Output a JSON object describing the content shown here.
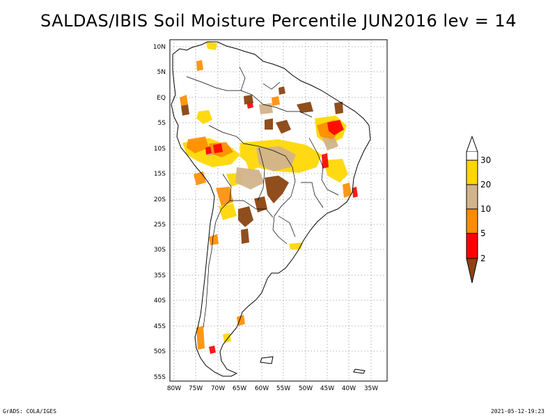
{
  "title": "SALDAS/IBIS Soil Moisture Percentile JUN2016 lev = 14",
  "footer_left": "GrADS: COLA/IGES",
  "footer_right": "2021-05-12-19:23",
  "lat_labels": [
    "10N",
    "5N",
    "EQ",
    "5S",
    "10S",
    "15S",
    "20S",
    "25S",
    "30S",
    "35S",
    "40S",
    "45S",
    "50S",
    "55S"
  ],
  "lon_labels": [
    "80W",
    "75W",
    "70W",
    "65W",
    "60W",
    "55W",
    "50W",
    "45W",
    "40W",
    "35W"
  ],
  "colorbar": {
    "levels": [
      "30",
      "20",
      "10",
      "5",
      "2"
    ],
    "colors": {
      "above30": "#ffffff",
      "c20_30": "#ffd700",
      "c10_20": "#d2b48c",
      "c5_10": "#ff8c00",
      "c2_5": "#ff0000",
      "below2": "#8b4513"
    }
  }
}
